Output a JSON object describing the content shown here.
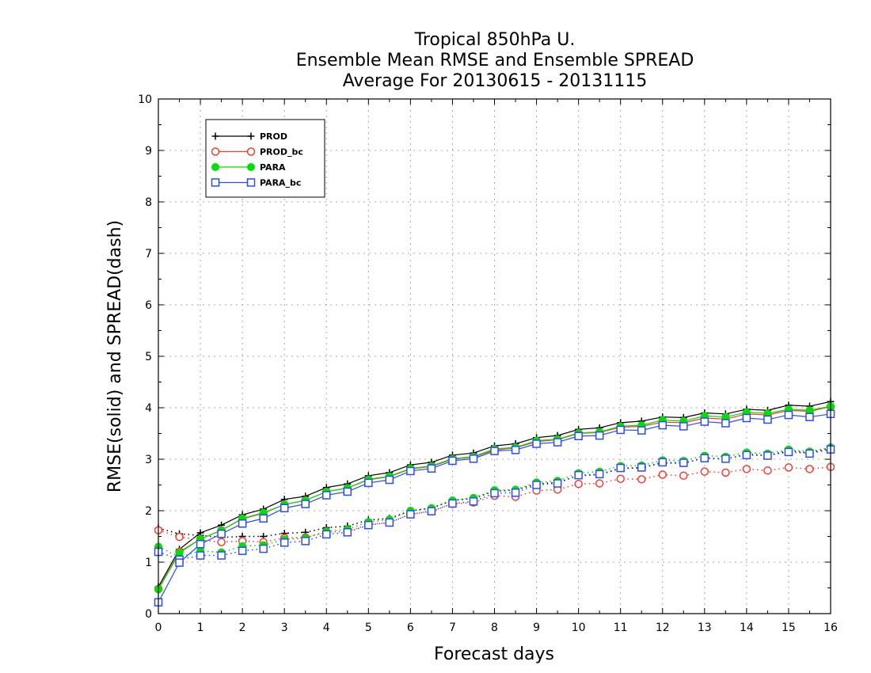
{
  "chart_data": {
    "type": "line",
    "title_lines": [
      "Tropical 850hPa U.",
      "Ensemble Mean RMSE and Ensemble SPREAD",
      "Average For 20130615 - 20131115"
    ],
    "xlabel": "Forecast days",
    "ylabel": "RMSE(solid) and SPREAD(dash)",
    "xlim": [
      0,
      16
    ],
    "ylim": [
      0,
      10
    ],
    "x_ticks": [
      "0",
      "1",
      "2",
      "3",
      "4",
      "5",
      "6",
      "7",
      "8",
      "9",
      "10",
      "11",
      "12",
      "13",
      "14",
      "15",
      "16"
    ],
    "y_ticks": [
      "0",
      "1",
      "2",
      "3",
      "4",
      "5",
      "6",
      "7",
      "8",
      "9",
      "10"
    ],
    "grid": true,
    "legend_position": "top-left",
    "x": [
      0,
      0.5,
      1,
      1.5,
      2,
      2.5,
      3,
      3.5,
      4,
      4.5,
      5,
      5.5,
      6,
      6.5,
      7,
      7.5,
      8,
      8.5,
      9,
      9.5,
      10,
      10.5,
      11,
      11.5,
      12,
      12.5,
      13,
      13.5,
      14,
      14.5,
      15,
      15.5,
      16
    ],
    "series": [
      {
        "name": "PROD",
        "color": "#000000",
        "marker": "plus",
        "rmse": [
          0.52,
          1.25,
          1.57,
          1.72,
          1.92,
          2.03,
          2.22,
          2.28,
          2.45,
          2.52,
          2.68,
          2.74,
          2.89,
          2.94,
          3.08,
          3.12,
          3.26,
          3.3,
          3.42,
          3.46,
          3.58,
          3.61,
          3.71,
          3.74,
          3.82,
          3.81,
          3.9,
          3.88,
          3.97,
          3.95,
          4.05,
          4.03,
          4.12
        ],
        "spread": [
          1.66,
          1.55,
          1.52,
          1.48,
          1.5,
          1.5,
          1.56,
          1.58,
          1.67,
          1.7,
          1.82,
          1.85,
          2.0,
          2.05,
          2.2,
          2.24,
          2.38,
          2.4,
          2.52,
          2.55,
          2.68,
          2.7,
          2.82,
          2.83,
          2.93,
          2.92,
          3.03,
          3.0,
          3.1,
          3.07,
          3.17,
          3.12,
          3.22
        ]
      },
      {
        "name": "PROD_bc",
        "color": "#ff3b30",
        "marker": "open-circle",
        "rmse": [
          0.48,
          1.2,
          1.45,
          1.62,
          1.84,
          1.95,
          2.12,
          2.2,
          2.37,
          2.44,
          2.6,
          2.66,
          2.81,
          2.86,
          3.0,
          3.04,
          3.18,
          3.22,
          3.34,
          3.38,
          3.5,
          3.52,
          3.62,
          3.64,
          3.72,
          3.71,
          3.8,
          3.78,
          3.88,
          3.86,
          3.95,
          3.93,
          4.02
        ],
        "spread": [
          1.62,
          1.49,
          1.43,
          1.39,
          1.41,
          1.39,
          1.47,
          1.48,
          1.58,
          1.6,
          1.73,
          1.77,
          1.93,
          1.99,
          2.13,
          2.16,
          2.29,
          2.27,
          2.39,
          2.41,
          2.52,
          2.53,
          2.62,
          2.61,
          2.7,
          2.68,
          2.76,
          2.74,
          2.81,
          2.78,
          2.84,
          2.81,
          2.85
        ]
      },
      {
        "name": "PARA",
        "color": "#00e000",
        "marker": "filled-circle",
        "rmse": [
          0.47,
          1.18,
          1.45,
          1.62,
          1.85,
          1.96,
          2.12,
          2.2,
          2.37,
          2.44,
          2.61,
          2.67,
          2.82,
          2.87,
          3.01,
          3.05,
          3.2,
          3.23,
          3.36,
          3.39,
          3.51,
          3.53,
          3.64,
          3.66,
          3.76,
          3.74,
          3.84,
          3.82,
          3.91,
          3.89,
          3.97,
          3.95,
          4.03
        ],
        "spread": [
          1.3,
          1.1,
          1.22,
          1.19,
          1.31,
          1.33,
          1.44,
          1.47,
          1.6,
          1.64,
          1.78,
          1.83,
          2.0,
          2.05,
          2.2,
          2.25,
          2.4,
          2.41,
          2.55,
          2.58,
          2.73,
          2.76,
          2.87,
          2.88,
          2.98,
          2.97,
          3.07,
          3.05,
          3.13,
          3.11,
          3.19,
          3.15,
          3.23
        ]
      },
      {
        "name": "PARA_bc",
        "color": "#2a4bff",
        "marker": "open-square",
        "rmse": [
          0.22,
          0.99,
          1.35,
          1.55,
          1.75,
          1.85,
          2.05,
          2.13,
          2.3,
          2.37,
          2.54,
          2.6,
          2.77,
          2.82,
          2.97,
          3.01,
          3.16,
          3.18,
          3.3,
          3.33,
          3.45,
          3.46,
          3.57,
          3.56,
          3.66,
          3.64,
          3.73,
          3.7,
          3.8,
          3.77,
          3.86,
          3.82,
          3.88
        ],
        "spread": [
          1.2,
          1.05,
          1.13,
          1.13,
          1.22,
          1.26,
          1.38,
          1.41,
          1.54,
          1.58,
          1.72,
          1.77,
          1.93,
          1.99,
          2.14,
          2.18,
          2.34,
          2.35,
          2.5,
          2.53,
          2.69,
          2.71,
          2.83,
          2.84,
          2.94,
          2.93,
          3.02,
          3.01,
          3.08,
          3.07,
          3.14,
          3.11,
          3.19
        ]
      }
    ]
  }
}
